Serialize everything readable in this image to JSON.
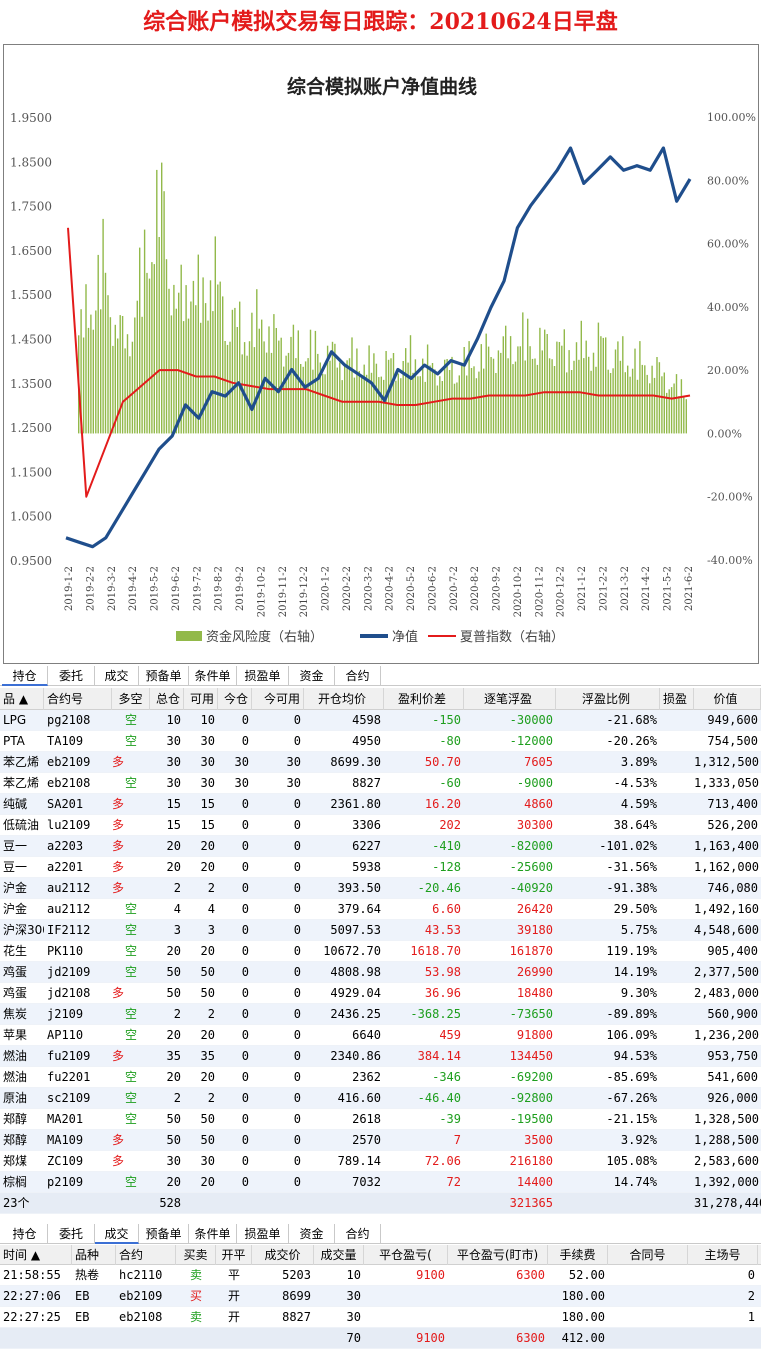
{
  "page_title": "综合账户模拟交易每日跟踪：20210624日早盘",
  "chart_data": {
    "type": "line",
    "title": "综合模拟账户净值曲线",
    "left_axis": {
      "ticks": [
        "1.9500",
        "1.8500",
        "1.7500",
        "1.6500",
        "1.5500",
        "1.4500",
        "1.3500",
        "1.2500",
        "1.1500",
        "1.0500",
        "0.9500"
      ],
      "min": 0.95,
      "max": 1.95
    },
    "right_axis": {
      "ticks": [
        "100.00%",
        "80.00%",
        "60.00%",
        "40.00%",
        "20.00%",
        "0.00%",
        "-20.00%",
        "-40.00%"
      ],
      "min": -40,
      "max": 100
    },
    "x_ticks": [
      "2019-1-2",
      "2019-2-2",
      "2019-3-2",
      "2019-4-2",
      "2019-5-2",
      "2019-6-2",
      "2019-7-2",
      "2019-8-2",
      "2019-9-2",
      "2019-10-2",
      "2019-11-2",
      "2019-12-2",
      "2020-1-2",
      "2020-2-2",
      "2020-3-2",
      "2020-4-2",
      "2020-5-2",
      "2020-6-2",
      "2020-7-2",
      "2020-8-2",
      "2020-9-2",
      "2020-10-2",
      "2020-11-2",
      "2020-12-2",
      "2021-1-2",
      "2021-2-2",
      "2021-3-2",
      "2021-4-2",
      "2021-5-2",
      "2021-6-2"
    ],
    "legend": [
      "资金风险度（右轴）",
      "净值",
      "夏普指数（右轴）"
    ],
    "colors": {
      "bars": "#92b94a",
      "nav": "#1f4e8c",
      "sharpe": "#e31b1b"
    },
    "series": [
      {
        "name": "净值",
        "axis": "left",
        "values": [
          1.0,
          0.99,
          0.98,
          1.0,
          1.05,
          1.1,
          1.15,
          1.2,
          1.23,
          1.3,
          1.27,
          1.33,
          1.32,
          1.35,
          1.29,
          1.36,
          1.33,
          1.38,
          1.34,
          1.36,
          1.42,
          1.39,
          1.37,
          1.35,
          1.31,
          1.38,
          1.36,
          1.39,
          1.37,
          1.4,
          1.39,
          1.45,
          1.52,
          1.58,
          1.7,
          1.75,
          1.79,
          1.83,
          1.88,
          1.8,
          1.83,
          1.86,
          1.83,
          1.84,
          1.83,
          1.88,
          1.76,
          1.81
        ]
      },
      {
        "name": "夏普指数（右轴）",
        "axis": "right",
        "values": [
          65,
          -20,
          -5,
          10,
          15,
          20,
          20,
          18,
          18,
          16,
          15,
          14,
          14,
          14,
          12,
          10,
          10,
          10,
          9,
          9,
          10,
          11,
          11,
          12,
          12,
          12,
          13,
          13,
          13,
          12,
          12,
          12,
          12,
          11,
          12
        ]
      },
      {
        "name": "资金风险度（右轴）",
        "axis": "right",
        "values": [
          40,
          55,
          70,
          45,
          38,
          60,
          85,
          95,
          50,
          65,
          55,
          70,
          50,
          45,
          42,
          48,
          40,
          38,
          36,
          35,
          33,
          32,
          30,
          32,
          28,
          30,
          28,
          32,
          30,
          28,
          26,
          28,
          30,
          32,
          34,
          36,
          38,
          40,
          36,
          38,
          34,
          36,
          35,
          38,
          33,
          32,
          30,
          28,
          25,
          20,
          18
        ]
      }
    ]
  },
  "tabs1": [
    "持仓",
    "委托",
    "成交",
    "预备单",
    "条件单",
    "损盈单",
    "资金",
    "合约"
  ],
  "positions": {
    "headers": [
      "品 ▲",
      "合约号",
      "多空",
      "总仓",
      "可用",
      "今仓",
      "今可用",
      "开仓均价",
      "盈利价差",
      "逐笔浮盈",
      "浮盈比例",
      "损盈",
      "价值"
    ],
    "rows": [
      [
        "LPG",
        "pg2108",
        "空",
        "10",
        "10",
        "0",
        "0",
        "4598",
        "-150",
        "-30000",
        "-21.68%",
        "",
        "949,600"
      ],
      [
        "PTA",
        "TA109",
        "空",
        "30",
        "30",
        "0",
        "0",
        "4950",
        "-80",
        "-12000",
        "-20.26%",
        "",
        "754,500"
      ],
      [
        "苯乙烯",
        "eb2109",
        "多",
        "30",
        "30",
        "30",
        "30",
        "8699.30",
        "50.70",
        "7605",
        "3.89%",
        "",
        "1,312,500"
      ],
      [
        "苯乙烯",
        "eb2108",
        "空",
        "30",
        "30",
        "30",
        "30",
        "8827",
        "-60",
        "-9000",
        "-4.53%",
        "",
        "1,333,050"
      ],
      [
        "纯碱",
        "SA201",
        "多",
        "15",
        "15",
        "0",
        "0",
        "2361.80",
        "16.20",
        "4860",
        "4.59%",
        "",
        "713,400"
      ],
      [
        "低硫油",
        "lu2109",
        "多",
        "15",
        "15",
        "0",
        "0",
        "3306",
        "202",
        "30300",
        "38.64%",
        "",
        "526,200"
      ],
      [
        "豆一",
        "a2203",
        "多",
        "20",
        "20",
        "0",
        "0",
        "6227",
        "-410",
        "-82000",
        "-101.02%",
        "",
        "1,163,400"
      ],
      [
        "豆一",
        "a2201",
        "多",
        "20",
        "20",
        "0",
        "0",
        "5938",
        "-128",
        "-25600",
        "-31.56%",
        "",
        "1,162,000"
      ],
      [
        "沪金",
        "au2112",
        "多",
        "2",
        "2",
        "0",
        "0",
        "393.50",
        "-20.46",
        "-40920",
        "-91.38%",
        "",
        "746,080"
      ],
      [
        "沪金",
        "au2112",
        "空",
        "4",
        "4",
        "0",
        "0",
        "379.64",
        "6.60",
        "26420",
        "29.50%",
        "",
        "1,492,160"
      ],
      [
        "沪深300",
        "IF2112",
        "空",
        "3",
        "3",
        "0",
        "0",
        "5097.53",
        "43.53",
        "39180",
        "5.75%",
        "",
        "4,548,600"
      ],
      [
        "花生",
        "PK110",
        "空",
        "20",
        "20",
        "0",
        "0",
        "10672.70",
        "1618.70",
        "161870",
        "119.19%",
        "",
        "905,400"
      ],
      [
        "鸡蛋",
        "jd2109",
        "空",
        "50",
        "50",
        "0",
        "0",
        "4808.98",
        "53.98",
        "26990",
        "14.19%",
        "",
        "2,377,500"
      ],
      [
        "鸡蛋",
        "jd2108",
        "多",
        "50",
        "50",
        "0",
        "0",
        "4929.04",
        "36.96",
        "18480",
        "9.30%",
        "",
        "2,483,000"
      ],
      [
        "焦炭",
        "j2109",
        "空",
        "2",
        "2",
        "0",
        "0",
        "2436.25",
        "-368.25",
        "-73650",
        "-89.89%",
        "",
        "560,900"
      ],
      [
        "苹果",
        "AP110",
        "空",
        "20",
        "20",
        "0",
        "0",
        "6640",
        "459",
        "91800",
        "106.09%",
        "",
        "1,236,200"
      ],
      [
        "燃油",
        "fu2109",
        "多",
        "35",
        "35",
        "0",
        "0",
        "2340.86",
        "384.14",
        "134450",
        "94.53%",
        "",
        "953,750"
      ],
      [
        "燃油",
        "fu2201",
        "空",
        "20",
        "20",
        "0",
        "0",
        "2362",
        "-346",
        "-69200",
        "-85.69%",
        "",
        "541,600"
      ],
      [
        "原油",
        "sc2109",
        "空",
        "2",
        "2",
        "0",
        "0",
        "416.60",
        "-46.40",
        "-92800",
        "-67.26%",
        "",
        "926,000"
      ],
      [
        "郑醇",
        "MA201",
        "空",
        "50",
        "50",
        "0",
        "0",
        "2618",
        "-39",
        "-19500",
        "-21.15%",
        "",
        "1,328,500"
      ],
      [
        "郑醇",
        "MA109",
        "多",
        "50",
        "50",
        "0",
        "0",
        "2570",
        "7",
        "3500",
        "3.92%",
        "",
        "1,288,500"
      ],
      [
        "郑煤",
        "ZC109",
        "多",
        "30",
        "30",
        "0",
        "0",
        "789.14",
        "72.06",
        "216180",
        "105.08%",
        "",
        "2,583,600"
      ],
      [
        "棕榈",
        "p2109",
        "空",
        "20",
        "20",
        "0",
        "0",
        "7032",
        "72",
        "14400",
        "14.74%",
        "",
        "1,392,000"
      ]
    ],
    "total": {
      "count": "23个",
      "total_pos": "528",
      "float_pnl": "321365",
      "value": "31,278,440"
    }
  },
  "tabs2": [
    "持仓",
    "委托",
    "成交",
    "预备单",
    "条件单",
    "损盈单",
    "资金",
    "合约"
  ],
  "trades": {
    "headers": [
      "时间 ▲",
      "品种",
      "合约",
      "买卖",
      "开平",
      "成交价",
      "成交量",
      "平仓盈亏(",
      "平仓盈亏(盯市)",
      "手续费",
      "合同号",
      "主场号"
    ],
    "rows": [
      [
        "21:58:55",
        "热卷",
        "hc2110",
        "卖",
        "平",
        "5203",
        "10",
        "9100",
        "6300",
        "52.00",
        "",
        "0"
      ],
      [
        "22:27:06",
        "EB",
        "eb2109",
        "买",
        "开",
        "8699",
        "30",
        "",
        "",
        "180.00",
        "",
        "2"
      ],
      [
        "22:27:25",
        "EB",
        "eb2108",
        "卖",
        "开",
        "8827",
        "30",
        "",
        "",
        "180.00",
        "",
        "1"
      ]
    ],
    "total": {
      "qty": "70",
      "pnl": "9100",
      "pnl_mtm": "6300",
      "fee": "412.00"
    }
  }
}
